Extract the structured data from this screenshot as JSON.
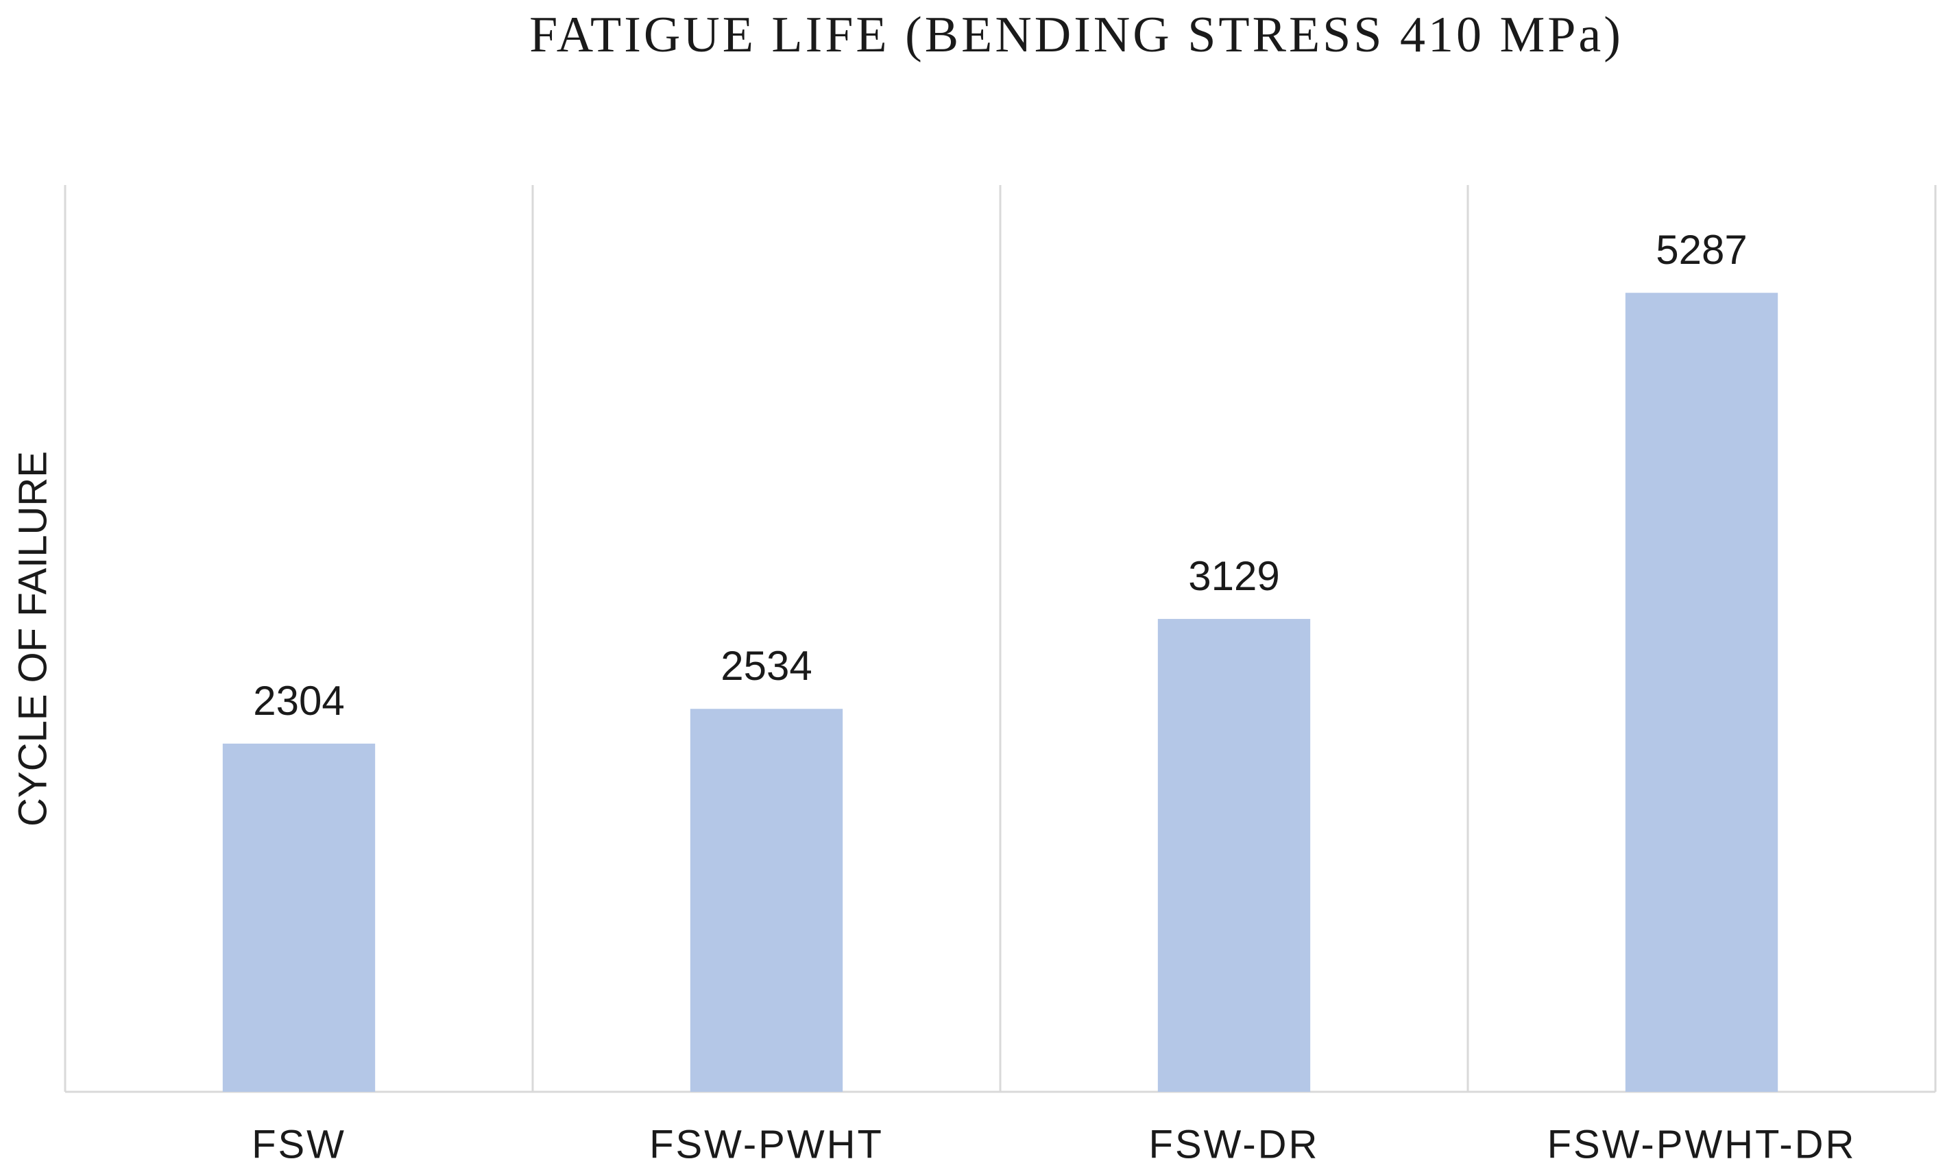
{
  "chart_data": {
    "type": "bar",
    "title": "FATIGUE LIFE (BENDING STRESS 410 MPa)",
    "y_label": "CYCLE OF  FAILURE",
    "categories": [
      "FSW",
      "FSW-PWHT",
      "FSW-DR",
      "FSW-PWHT-DR"
    ],
    "values": [
      2304,
      2534,
      3129,
      5287
    ],
    "color": "#b4c7e7",
    "ylim": [
      0,
      6000
    ]
  }
}
